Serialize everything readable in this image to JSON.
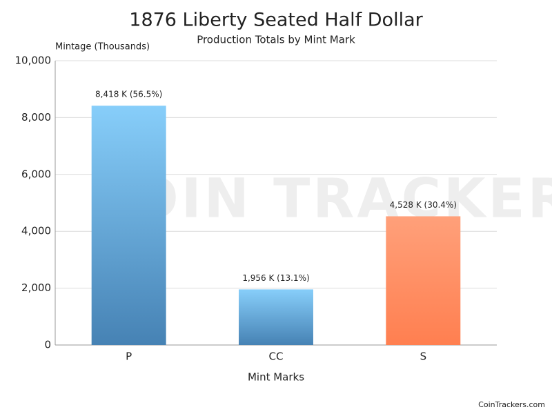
{
  "chart_data": {
    "type": "bar",
    "title": "1876 Liberty Seated Half Dollar",
    "subtitle": "Production Totals by Mint Mark",
    "y_axis_label": "Mintage (Thousands)",
    "x_axis_label": "Mint Marks",
    "watermark": "COIN TRACKERS",
    "footer": "CoinTrackers.com",
    "categories": [
      "P",
      "CC",
      "S"
    ],
    "values": [
      8418,
      1956,
      4528
    ],
    "value_labels": [
      "8,418 K (56.5%)",
      "1,956 K (13.1%)",
      "4,528 K (30.4%)"
    ],
    "colors": [
      [
        "#87cefa",
        "#4682b4"
      ],
      [
        "#87cefa",
        "#4682b4"
      ],
      [
        "#ffa07a",
        "#ff7f50"
      ]
    ],
    "ylim": [
      0,
      10000
    ],
    "yticks": [
      0,
      {
        "value": 2000,
        "label": "2,000"
      },
      {
        "value": 4000,
        "label": "4,000"
      },
      {
        "value": 6000,
        "label": "6,000"
      },
      {
        "value": 8000,
        "label": "8,000"
      },
      {
        "value": 10000,
        "label": "10,000"
      }
    ],
    "grid": true
  }
}
